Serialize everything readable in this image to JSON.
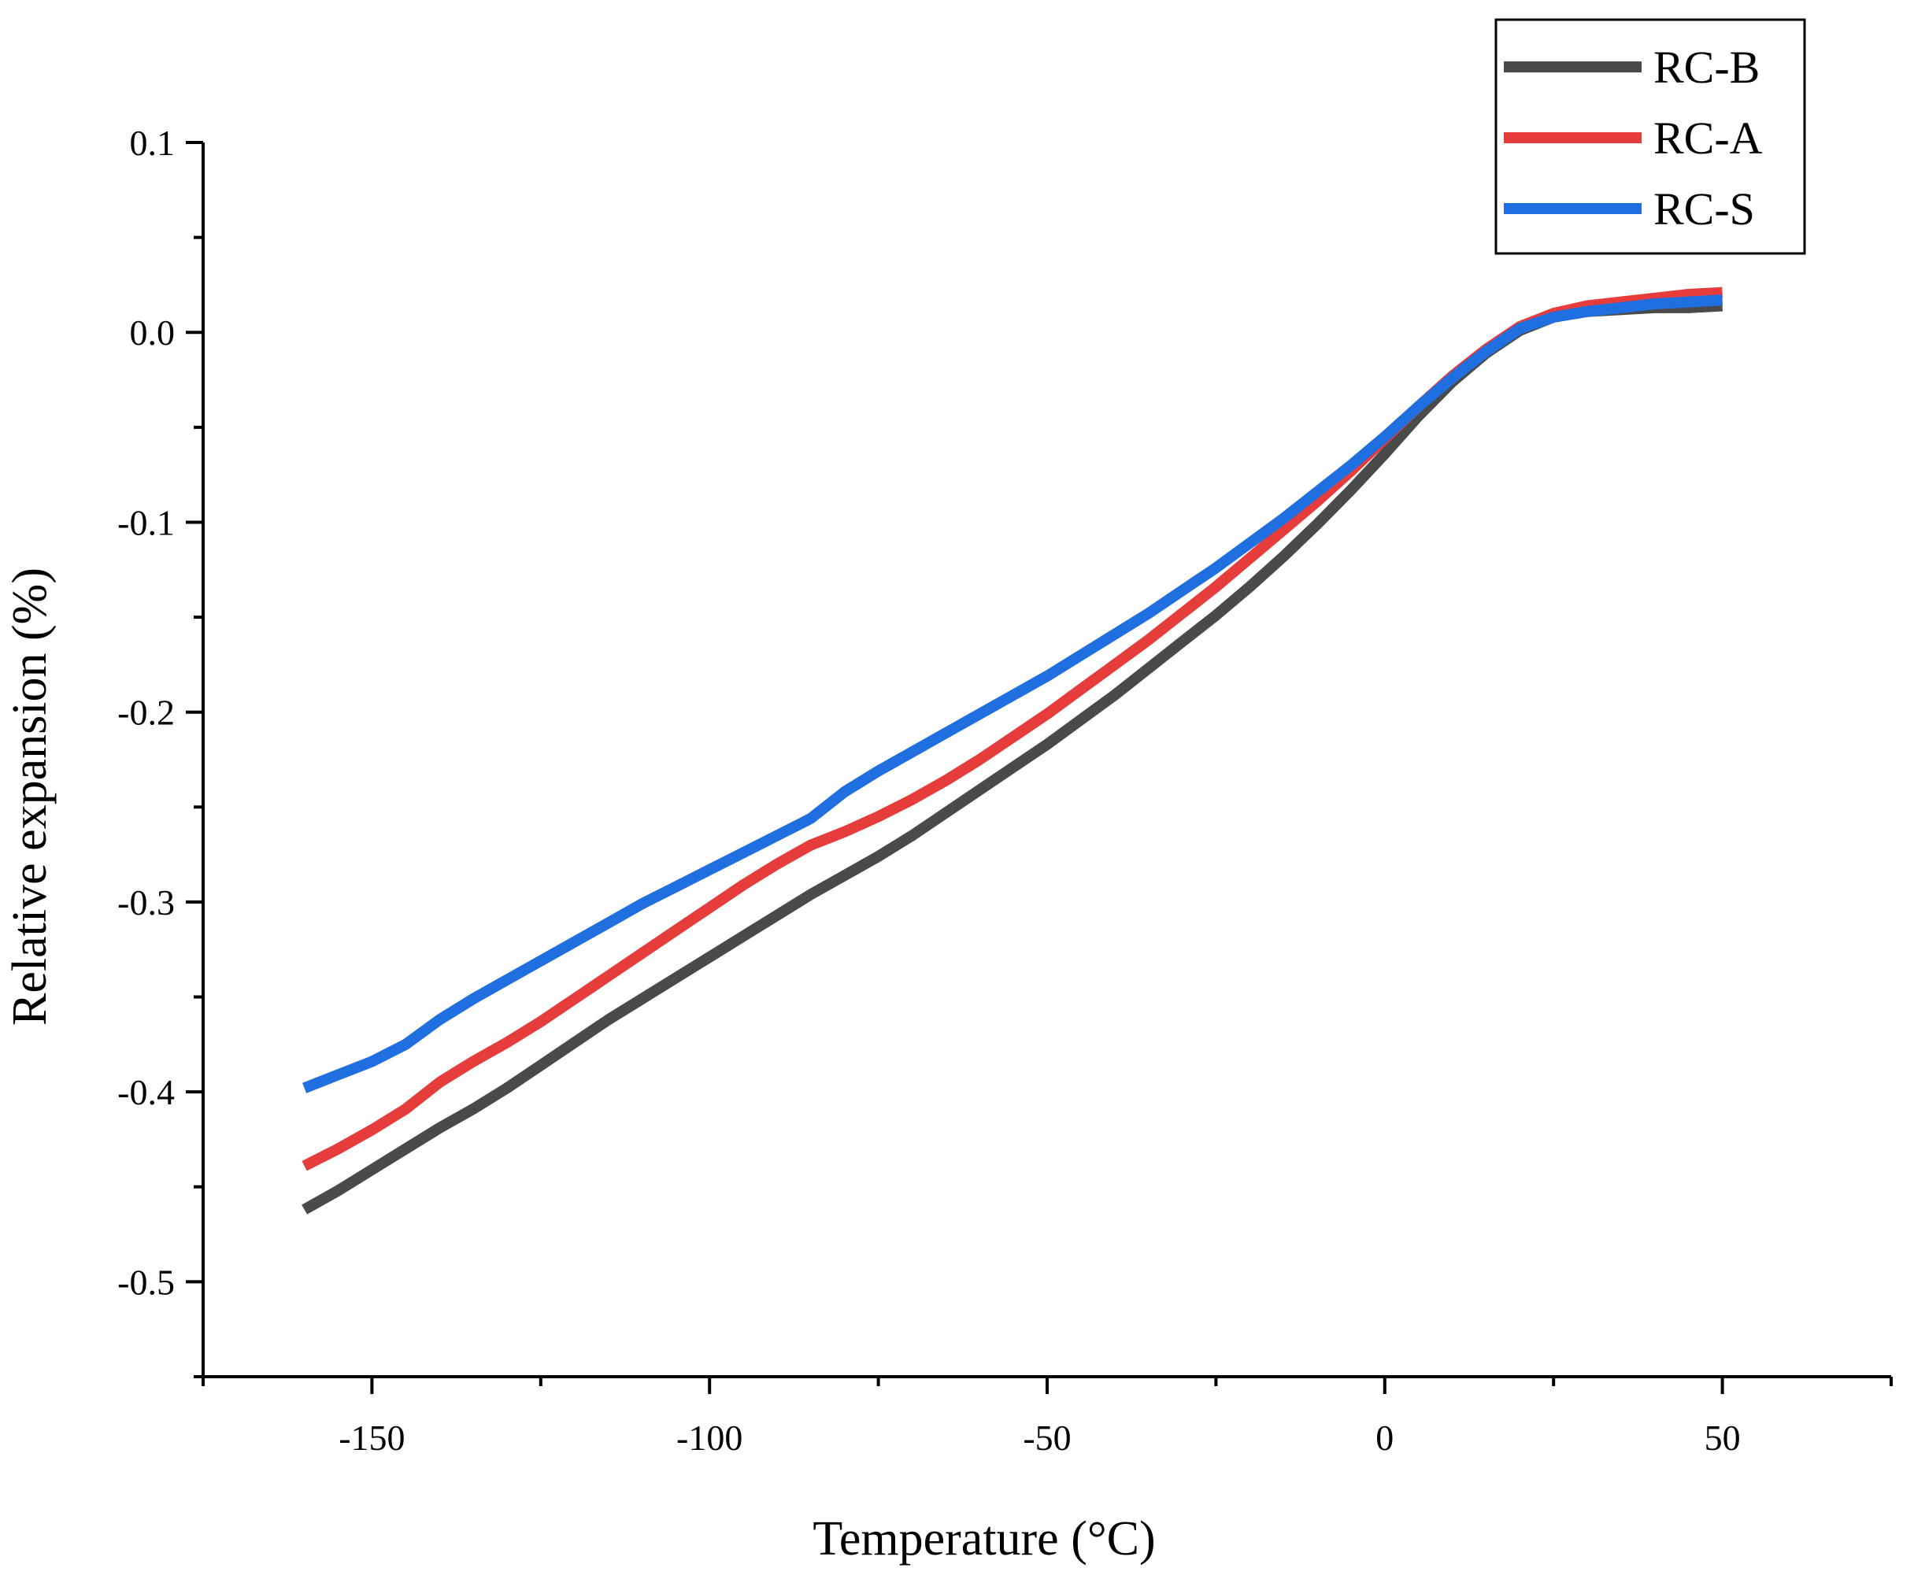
{
  "chart_data": {
    "type": "line",
    "title": "",
    "xlabel": "Temperature (°C)",
    "ylabel": "Relative expansion (%)",
    "xlim": [
      -175,
      75
    ],
    "ylim": [
      -0.55,
      0.1
    ],
    "xticks": [
      -150,
      -100,
      -50,
      0,
      50
    ],
    "xtick_labels": [
      "-150",
      "-100",
      "-50",
      "0",
      "50"
    ],
    "yticks": [
      0.1,
      0.0,
      -0.1,
      -0.2,
      -0.3,
      -0.4,
      -0.5
    ],
    "ytick_labels": [
      "0.1",
      "0.0",
      "-0.1",
      "-0.2",
      "-0.3",
      "-0.4",
      "-0.5"
    ],
    "x_minor_step": 25,
    "y_minor_step": 0.05,
    "grid": false,
    "legend_position": "top-right",
    "series": [
      {
        "name": "RC-B",
        "color": "#4a4a4a",
        "x": [
          -160,
          -155,
          -150,
          -145,
          -140,
          -135,
          -130,
          -125,
          -120,
          -115,
          -110,
          -105,
          -100,
          -95,
          -90,
          -85,
          -80,
          -75,
          -70,
          -65,
          -60,
          -55,
          -50,
          -45,
          -40,
          -35,
          -30,
          -25,
          -20,
          -15,
          -10,
          -5,
          0,
          5,
          10,
          15,
          20,
          25,
          30,
          35,
          40,
          45,
          50
        ],
        "y": [
          -0.462,
          -0.452,
          -0.441,
          -0.43,
          -0.419,
          -0.409,
          -0.398,
          -0.386,
          -0.374,
          -0.362,
          -0.351,
          -0.34,
          -0.329,
          -0.318,
          -0.307,
          -0.296,
          -0.286,
          -0.276,
          -0.265,
          -0.253,
          -0.241,
          -0.229,
          -0.217,
          -0.204,
          -0.191,
          -0.177,
          -0.163,
          -0.149,
          -0.134,
          -0.118,
          -0.101,
          -0.083,
          -0.064,
          -0.044,
          -0.026,
          -0.011,
          0.001,
          0.008,
          0.011,
          0.012,
          0.013,
          0.013,
          0.014
        ]
      },
      {
        "name": "RC-A",
        "color": "#e63c3c",
        "x": [
          -160,
          -155,
          -150,
          -145,
          -140,
          -135,
          -130,
          -125,
          -120,
          -115,
          -110,
          -105,
          -100,
          -95,
          -90,
          -85,
          -80,
          -75,
          -70,
          -65,
          -60,
          -55,
          -50,
          -45,
          -40,
          -35,
          -30,
          -25,
          -20,
          -15,
          -10,
          -5,
          0,
          5,
          10,
          15,
          20,
          25,
          30,
          35,
          40,
          45,
          50
        ],
        "y": [
          -0.439,
          -0.43,
          -0.42,
          -0.409,
          -0.395,
          -0.384,
          -0.374,
          -0.363,
          -0.351,
          -0.339,
          -0.327,
          -0.315,
          -0.303,
          -0.291,
          -0.28,
          -0.27,
          -0.263,
          -0.255,
          -0.246,
          -0.236,
          -0.225,
          -0.213,
          -0.201,
          -0.188,
          -0.175,
          -0.162,
          -0.148,
          -0.134,
          -0.119,
          -0.104,
          -0.089,
          -0.073,
          -0.056,
          -0.039,
          -0.023,
          -0.009,
          0.003,
          0.01,
          0.014,
          0.016,
          0.018,
          0.02,
          0.021
        ]
      },
      {
        "name": "RC-S",
        "color": "#1f6fe0",
        "x": [
          -160,
          -155,
          -150,
          -145,
          -140,
          -135,
          -130,
          -125,
          -120,
          -115,
          -110,
          -105,
          -100,
          -95,
          -90,
          -85,
          -80,
          -75,
          -70,
          -65,
          -60,
          -55,
          -50,
          -45,
          -40,
          -35,
          -30,
          -25,
          -20,
          -15,
          -10,
          -5,
          0,
          5,
          10,
          15,
          20,
          25,
          30,
          35,
          40,
          45,
          50
        ],
        "y": [
          -0.398,
          -0.391,
          -0.384,
          -0.375,
          -0.362,
          -0.351,
          -0.341,
          -0.331,
          -0.321,
          -0.311,
          -0.301,
          -0.292,
          -0.283,
          -0.274,
          -0.265,
          -0.256,
          -0.242,
          -0.231,
          -0.221,
          -0.211,
          -0.201,
          -0.191,
          -0.181,
          -0.17,
          -0.159,
          -0.148,
          -0.136,
          -0.124,
          -0.111,
          -0.098,
          -0.084,
          -0.07,
          -0.055,
          -0.039,
          -0.024,
          -0.01,
          0.002,
          0.008,
          0.011,
          0.013,
          0.015,
          0.016,
          0.017
        ]
      }
    ]
  }
}
